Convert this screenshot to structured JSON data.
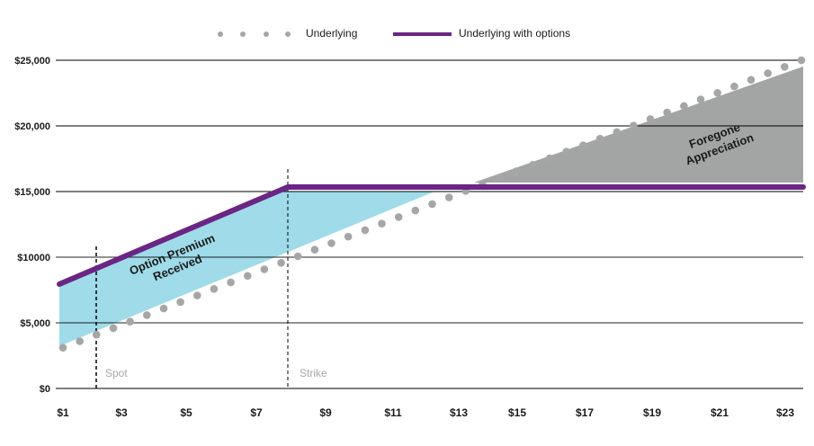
{
  "chart_data": {
    "type": "line",
    "title": "",
    "xlabel": "",
    "ylabel": "",
    "x_tick_labels": [
      "$1",
      "$3",
      "$5",
      "$7",
      "$9",
      "$11",
      "$13",
      "$15",
      "$17",
      "$19",
      "$21",
      "$23"
    ],
    "y_tick_labels": [
      "$0",
      "$5,000",
      "$10000",
      "$15,000",
      "$20,000",
      "$25,000"
    ],
    "y_tick_values": [
      0,
      5000,
      10000,
      15000,
      20000,
      25000
    ],
    "ylim": [
      0,
      25000
    ],
    "grid": "horizontal",
    "legend_position": "top",
    "series": [
      {
        "name": "Underlying",
        "style": "dotted",
        "color": "#a6a6a6",
        "points": [
          [
            1,
            3100
          ],
          [
            23,
            25000
          ]
        ]
      },
      {
        "name": "Underlying with options",
        "style": "solid",
        "color": "#6b2584",
        "points": [
          [
            1,
            8000
          ],
          [
            7.9,
            15400
          ],
          [
            23,
            15400
          ]
        ]
      }
    ],
    "regions": [
      {
        "name": "Option Premium Received",
        "color": "#9fdbe8"
      },
      {
        "name": "Foregone Appreciation",
        "color": "#a3a5a5"
      }
    ],
    "markers": [
      {
        "label": "Spot",
        "x": 2.1
      },
      {
        "label": "Strike",
        "x": 7.9
      }
    ],
    "annotations": [
      "Option Premium Received",
      "Foregone Appreciation"
    ]
  },
  "legend": {
    "underlying": "Underlying",
    "underlying_with_options": "Underlying with options"
  },
  "axes": {
    "y": [
      "$0",
      "$5,000",
      "$10000",
      "$15,000",
      "$20,000",
      "$25,000"
    ],
    "x": [
      "$1",
      "$3",
      "$5",
      "$7",
      "$9",
      "$11",
      "$13",
      "$15",
      "$17",
      "$19",
      "$21",
      "$23"
    ]
  },
  "annotations": {
    "premium_line1": "Option Premium",
    "premium_line2": "Received",
    "foregone_line1": "Foregone",
    "foregone_line2": "Appreciation"
  },
  "markers": {
    "spot": "Spot",
    "strike": "Strike"
  },
  "colors": {
    "purple": "#6b2584",
    "dots": "#a6a6a6",
    "premium_fill": "#9fdbe8",
    "foregone_fill": "#a3a5a5"
  }
}
